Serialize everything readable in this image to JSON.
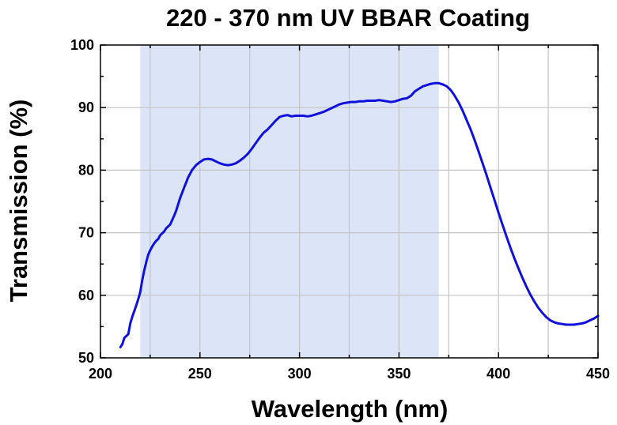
{
  "chart_data": {
    "type": "line",
    "title": "220 - 370 nm UV BBAR Coating",
    "xlabel": "Wavelength (nm)",
    "ylabel": "Transmission (%)",
    "xlim": [
      200,
      450
    ],
    "ylim": [
      50,
      100
    ],
    "x_ticks": [
      200,
      250,
      300,
      350,
      400,
      450
    ],
    "y_ticks": [
      50,
      60,
      70,
      80,
      90,
      100
    ],
    "grid": true,
    "highlight_band": {
      "x_start": 220,
      "x_end": 370,
      "color": "#dbe5f7"
    },
    "series": [
      {
        "color": "#1010dd",
        "points": [
          [
            210,
            51.7
          ],
          [
            211,
            52.2
          ],
          [
            212,
            53.2
          ],
          [
            213,
            53.5
          ],
          [
            214,
            53.8
          ],
          [
            215,
            55.5
          ],
          [
            216,
            56.6
          ],
          [
            217,
            57.5
          ],
          [
            218,
            58.4
          ],
          [
            219,
            59.4
          ],
          [
            220,
            60.5
          ],
          [
            221,
            62.4
          ],
          [
            222,
            64.0
          ],
          [
            223,
            65.3
          ],
          [
            224,
            66.5
          ],
          [
            225,
            67.2
          ],
          [
            226,
            67.8
          ],
          [
            227,
            68.3
          ],
          [
            228,
            68.7
          ],
          [
            229,
            69.0
          ],
          [
            230,
            69.6
          ],
          [
            231,
            69.9
          ],
          [
            232,
            70.2
          ],
          [
            233,
            70.7
          ],
          [
            234,
            71.0
          ],
          [
            235,
            71.3
          ],
          [
            236,
            72.0
          ],
          [
            237,
            72.7
          ],
          [
            238,
            73.5
          ],
          [
            239,
            74.5
          ],
          [
            240,
            75.5
          ],
          [
            242,
            77.2
          ],
          [
            244,
            78.8
          ],
          [
            246,
            80.0
          ],
          [
            248,
            80.8
          ],
          [
            250,
            81.3
          ],
          [
            252,
            81.7
          ],
          [
            254,
            81.8
          ],
          [
            256,
            81.7
          ],
          [
            258,
            81.4
          ],
          [
            260,
            81.1
          ],
          [
            262,
            80.9
          ],
          [
            264,
            80.8
          ],
          [
            266,
            80.9
          ],
          [
            268,
            81.1
          ],
          [
            270,
            81.5
          ],
          [
            272,
            82.0
          ],
          [
            274,
            82.6
          ],
          [
            276,
            83.4
          ],
          [
            278,
            84.3
          ],
          [
            280,
            85.2
          ],
          [
            282,
            86.0
          ],
          [
            284,
            86.5
          ],
          [
            286,
            87.2
          ],
          [
            288,
            87.9
          ],
          [
            290,
            88.5
          ],
          [
            292,
            88.7
          ],
          [
            294,
            88.8
          ],
          [
            296,
            88.6
          ],
          [
            298,
            88.7
          ],
          [
            300,
            88.7
          ],
          [
            302,
            88.7
          ],
          [
            304,
            88.6
          ],
          [
            306,
            88.7
          ],
          [
            308,
            88.9
          ],
          [
            310,
            89.1
          ],
          [
            312,
            89.3
          ],
          [
            314,
            89.6
          ],
          [
            316,
            89.9
          ],
          [
            318,
            90.2
          ],
          [
            320,
            90.5
          ],
          [
            322,
            90.7
          ],
          [
            324,
            90.8
          ],
          [
            326,
            90.9
          ],
          [
            328,
            90.9
          ],
          [
            330,
            91.0
          ],
          [
            332,
            91.0
          ],
          [
            334,
            91.1
          ],
          [
            336,
            91.1
          ],
          [
            338,
            91.1
          ],
          [
            340,
            91.2
          ],
          [
            342,
            91.1
          ],
          [
            344,
            91.0
          ],
          [
            346,
            90.9
          ],
          [
            348,
            91.0
          ],
          [
            350,
            91.2
          ],
          [
            352,
            91.4
          ],
          [
            354,
            91.5
          ],
          [
            356,
            91.9
          ],
          [
            358,
            92.6
          ],
          [
            360,
            93.0
          ],
          [
            362,
            93.4
          ],
          [
            364,
            93.6
          ],
          [
            366,
            93.8
          ],
          [
            368,
            93.9
          ],
          [
            370,
            93.9
          ],
          [
            372,
            93.7
          ],
          [
            374,
            93.4
          ],
          [
            376,
            92.8
          ],
          [
            378,
            91.9
          ],
          [
            380,
            90.8
          ],
          [
            382,
            89.5
          ],
          [
            384,
            88.0
          ],
          [
            386,
            86.5
          ],
          [
            388,
            84.8
          ],
          [
            390,
            83.0
          ],
          [
            392,
            81.1
          ],
          [
            394,
            79.2
          ],
          [
            396,
            77.2
          ],
          [
            398,
            75.2
          ],
          [
            400,
            73.2
          ],
          [
            402,
            71.3
          ],
          [
            404,
            69.4
          ],
          [
            406,
            67.6
          ],
          [
            408,
            65.9
          ],
          [
            410,
            64.3
          ],
          [
            412,
            62.8
          ],
          [
            414,
            61.4
          ],
          [
            416,
            60.1
          ],
          [
            418,
            59.0
          ],
          [
            420,
            58.0
          ],
          [
            422,
            57.2
          ],
          [
            424,
            56.5
          ],
          [
            426,
            56.0
          ],
          [
            428,
            55.7
          ],
          [
            430,
            55.5
          ],
          [
            432,
            55.4
          ],
          [
            434,
            55.3
          ],
          [
            436,
            55.3
          ],
          [
            438,
            55.3
          ],
          [
            440,
            55.4
          ],
          [
            442,
            55.5
          ],
          [
            444,
            55.7
          ],
          [
            446,
            56.0
          ],
          [
            448,
            56.3
          ],
          [
            450,
            56.7
          ]
        ]
      }
    ]
  }
}
